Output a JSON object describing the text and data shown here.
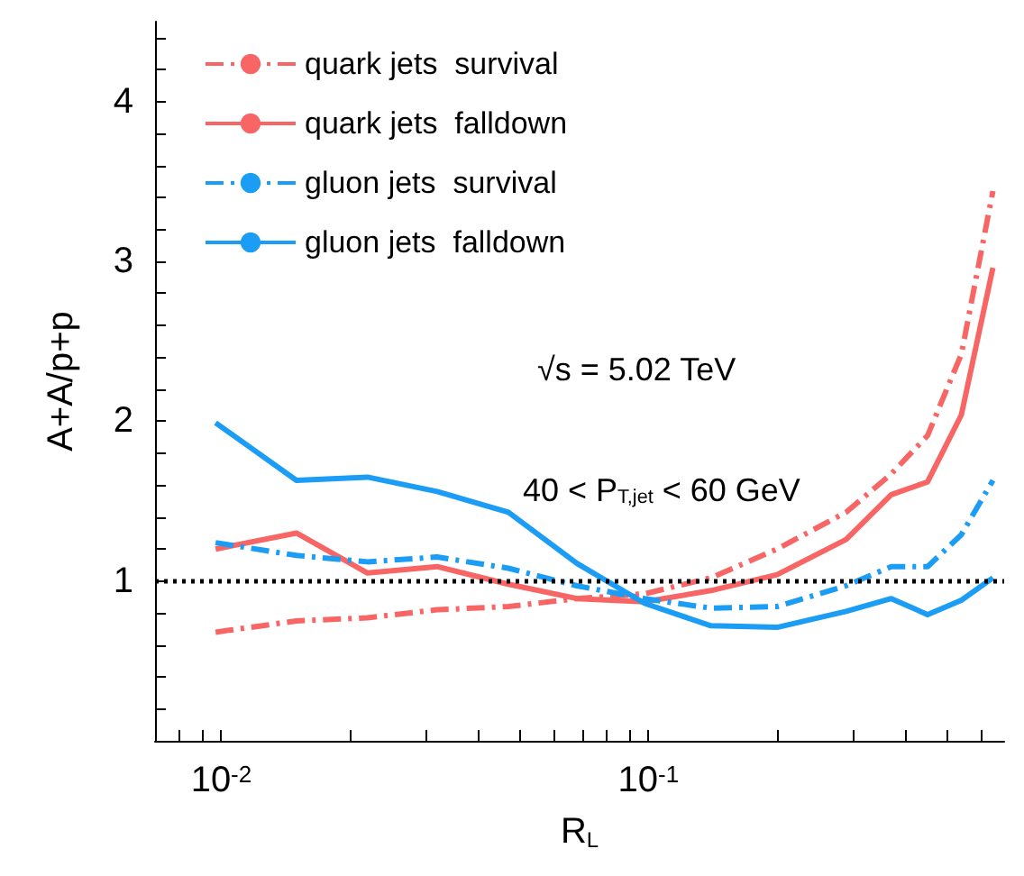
{
  "chart_data": {
    "type": "line",
    "xlabel": "R$_{L}$",
    "ylabel": "A+A/p+p",
    "x": [
      0.0097,
      0.015,
      0.022,
      0.032,
      0.047,
      0.068,
      0.098,
      0.14,
      0.2,
      0.29,
      0.37,
      0.45,
      0.54,
      0.64
    ],
    "series": [
      {
        "name": "quark jets  survival",
        "color": "#f86565",
        "line_style": "dashed",
        "values": [
          0.68,
          0.75,
          0.77,
          0.82,
          0.84,
          0.89,
          0.92,
          1.02,
          1.2,
          1.43,
          1.67,
          1.91,
          2.42,
          3.44
        ]
      },
      {
        "name": "quark jets  falldown",
        "color": "#f86565",
        "line_style": "solid",
        "values": [
          1.2,
          1.3,
          1.05,
          1.09,
          0.98,
          0.89,
          0.87,
          0.94,
          1.04,
          1.26,
          1.54,
          1.62,
          2.04,
          2.96
        ]
      },
      {
        "name": "gluon jets  survival",
        "color": "#1b9cf5",
        "line_style": "dashed",
        "values": [
          1.24,
          1.16,
          1.12,
          1.15,
          1.08,
          0.97,
          0.89,
          0.83,
          0.84,
          0.97,
          1.09,
          1.09,
          1.29,
          1.63
        ]
      },
      {
        "name": "gluon jets  falldown",
        "color": "#1b9cf5",
        "line_style": "solid",
        "values": [
          1.99,
          1.63,
          1.65,
          1.56,
          1.43,
          1.11,
          0.86,
          0.72,
          0.71,
          0.81,
          0.89,
          0.79,
          0.88,
          1.02
        ]
      }
    ],
    "log": "x",
    "xlim": [
      0.007,
      0.68
    ],
    "xticks": [
      {
        "value": 0.008,
        "label": null
      },
      {
        "value": 0.009,
        "label": null
      },
      {
        "value": 0.01,
        "label": "10$^{-2}$"
      },
      {
        "value": 0.02,
        "label": null
      },
      {
        "value": 0.03,
        "label": null
      },
      {
        "value": 0.04,
        "label": null
      },
      {
        "value": 0.05,
        "label": null
      },
      {
        "value": 0.06,
        "label": null
      },
      {
        "value": 0.07,
        "label": null
      },
      {
        "value": 0.08,
        "label": null
      },
      {
        "value": 0.09,
        "label": null
      },
      {
        "value": 0.1,
        "label": "10$^{-1}$"
      },
      {
        "value": 0.2,
        "label": null
      },
      {
        "value": 0.3,
        "label": null
      },
      {
        "value": 0.4,
        "label": null
      },
      {
        "value": 0.5,
        "label": null
      },
      {
        "value": 0.6,
        "label": null
      }
    ],
    "ylim": [
      0,
      4.5
    ],
    "yticks": [
      {
        "value": 0.2,
        "label": null
      },
      {
        "value": 0.4,
        "label": null
      },
      {
        "value": 0.6,
        "label": null
      },
      {
        "value": 0.8,
        "label": null
      },
      1,
      {
        "value": 1.2,
        "label": null
      },
      {
        "value": 1.4,
        "label": null
      },
      {
        "value": 1.6,
        "label": null
      },
      {
        "value": 1.8,
        "label": null
      },
      2,
      {
        "value": 2.2,
        "label": null
      },
      {
        "value": 2.4,
        "label": null
      },
      {
        "value": 2.6,
        "label": null
      },
      {
        "value": 2.8,
        "label": null
      },
      3,
      {
        "value": 3.2,
        "label": null
      },
      {
        "value": 3.4,
        "label": null
      },
      {
        "value": 3.6,
        "label": null
      },
      {
        "value": 3.8,
        "label": null
      },
      4,
      {
        "value": 4.2,
        "label": null
      },
      {
        "value": 4.4,
        "label": null
      }
    ],
    "ref_lines": [
      {
        "axis": "y",
        "value": 1,
        "color": "#000000",
        "line_style": "dotted"
      }
    ],
    "annotations": [
      "√s = 5.02 TeV",
      "40 < P$_{T,jet}$ < 60 GeV"
    ],
    "legend": "top left",
    "marker": "none",
    "grid": false
  }
}
